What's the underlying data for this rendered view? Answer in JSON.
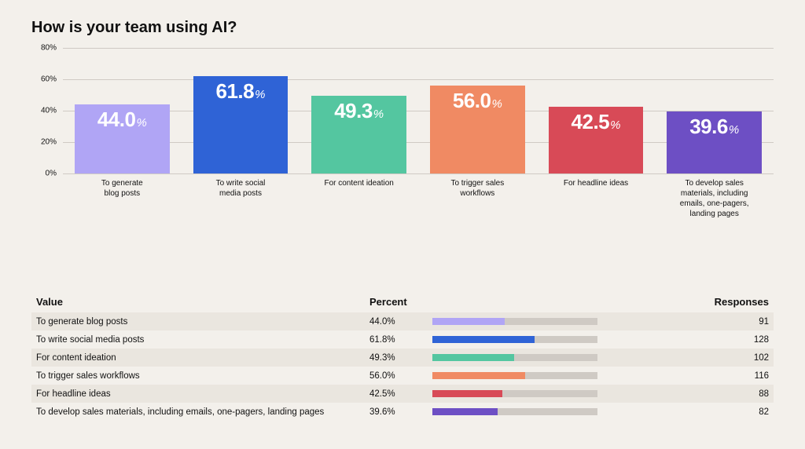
{
  "title": "How is your team using AI?",
  "background_color": "#f3f0eb",
  "text_color": "#111111",
  "chart": {
    "type": "bar",
    "ymax": 80,
    "ytick_step": 20,
    "yticks": [
      "0%",
      "20%",
      "40%",
      "60%",
      "80%"
    ],
    "grid_color": "#cfcac4",
    "bar_value_fontsize": 26,
    "bar_value_color": "#ffffff",
    "caption_fontsize": 10,
    "items": [
      {
        "label": "To generate blog posts",
        "value": 44.0,
        "value_text": "44.0",
        "color": "#b0a5f5",
        "caption": "To generate\nblog posts"
      },
      {
        "label": "To write social media posts",
        "value": 61.8,
        "value_text": "61.8",
        "color": "#2f63d6",
        "caption": "To write social\nmedia posts"
      },
      {
        "label": "For content ideation",
        "value": 49.3,
        "value_text": "49.3",
        "color": "#54c6a0",
        "caption": "For content ideation"
      },
      {
        "label": "To trigger sales workflows",
        "value": 56.0,
        "value_text": "56.0",
        "color": "#f08a63",
        "caption": "To trigger sales\nworkflows"
      },
      {
        "label": "For headline ideas",
        "value": 42.5,
        "value_text": "42.5",
        "color": "#d84a57",
        "caption": "For headline ideas"
      },
      {
        "label": "To develop sales materials, including emails, one-pagers, landing pages",
        "value": 39.6,
        "value_text": "39.6",
        "color": "#6d4fc4",
        "caption": "To develop sales\nmaterials, including\nemails, one-pagers,\nlanding pages"
      }
    ],
    "percent_glyph": "%"
  },
  "table": {
    "headers": {
      "value": "Value",
      "percent": "Percent",
      "responses": "Responses"
    },
    "row_alt_bg": "#eae6df",
    "mini_bar_track_color": "#cfcac4",
    "mini_bar_max_percent": 100,
    "rows": [
      {
        "value": "To generate blog posts",
        "percent_text": "44.0%",
        "percent": 44.0,
        "color": "#b0a5f5",
        "responses": "91"
      },
      {
        "value": "To write social media posts",
        "percent_text": "61.8%",
        "percent": 61.8,
        "color": "#2f63d6",
        "responses": "128"
      },
      {
        "value": "For content ideation",
        "percent_text": "49.3%",
        "percent": 49.3,
        "color": "#54c6a0",
        "responses": "102"
      },
      {
        "value": "To trigger sales workflows",
        "percent_text": "56.0%",
        "percent": 56.0,
        "color": "#f08a63",
        "responses": "116"
      },
      {
        "value": "For headline ideas",
        "percent_text": "42.5%",
        "percent": 42.5,
        "color": "#d84a57",
        "responses": "88"
      },
      {
        "value": "To develop sales materials, including emails, one-pagers, landing pages",
        "percent_text": "39.6%",
        "percent": 39.6,
        "color": "#6d4fc4",
        "responses": "82"
      }
    ]
  }
}
